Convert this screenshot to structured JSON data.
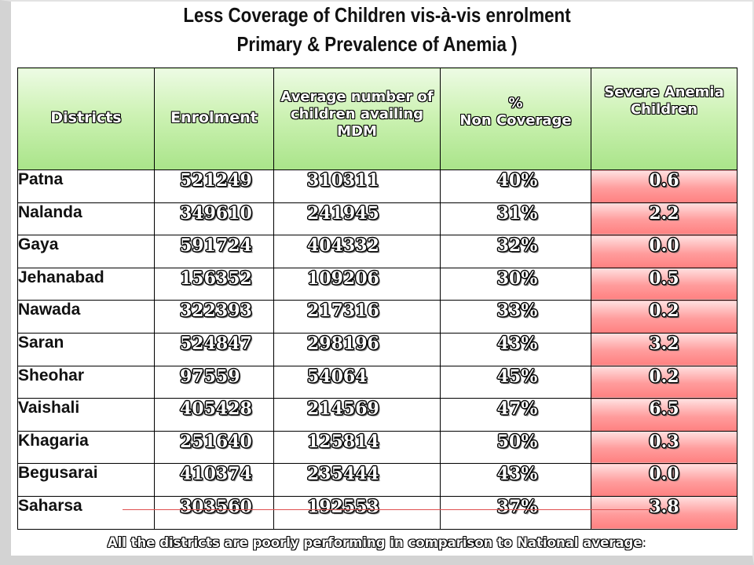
{
  "title_line1": "Less Coverage of Children vis-à-vis enrolment",
  "title_line2": "Primary & Prevalence of Anemia )",
  "table": {
    "headers": {
      "districts": "Districts",
      "enrolment": "Enrolment",
      "avg_mdm": "Average number of children availing MDM",
      "pct_line1": "%",
      "pct_line2": "Non Coverage",
      "severe_anemia": "Severe Anemia Children"
    },
    "rows": [
      {
        "district": "Patna",
        "enrolment": "521249",
        "avg_mdm": "310311",
        "non_coverage": "40%",
        "severe_anemia": "0.6"
      },
      {
        "district": "Nalanda",
        "enrolment": "349610",
        "avg_mdm": "241945",
        "non_coverage": "31%",
        "severe_anemia": "2.2"
      },
      {
        "district": "Gaya",
        "enrolment": "591724",
        "avg_mdm": "404332",
        "non_coverage": "32%",
        "severe_anemia": "0.0"
      },
      {
        "district": "Jehanabad",
        "enrolment": "156352",
        "avg_mdm": "109206",
        "non_coverage": "30%",
        "severe_anemia": "0.5"
      },
      {
        "district": "Nawada",
        "enrolment": "322393",
        "avg_mdm": "217316",
        "non_coverage": "33%",
        "severe_anemia": "0.2"
      },
      {
        "district": "Saran",
        "enrolment": "524847",
        "avg_mdm": "298196",
        "non_coverage": "43%",
        "severe_anemia": "3.2"
      },
      {
        "district": "Sheohar",
        "enrolment": "97559",
        "avg_mdm": "54064",
        "non_coverage": "45%",
        "severe_anemia": "0.2"
      },
      {
        "district": "Vaishali",
        "enrolment": "405428",
        "avg_mdm": "214569",
        "non_coverage": "47%",
        "severe_anemia": "6.5"
      },
      {
        "district": "Khagaria",
        "enrolment": "251640",
        "avg_mdm": "125814",
        "non_coverage": "50%",
        "severe_anemia": "0.3"
      },
      {
        "district": "Begusarai",
        "enrolment": "410374",
        "avg_mdm": "235444",
        "non_coverage": "43%",
        "severe_anemia": "0.0"
      },
      {
        "district": "Saharsa",
        "enrolment": "303560",
        "avg_mdm": "192553",
        "non_coverage": "37%",
        "severe_anemia": "3.8"
      }
    ]
  },
  "footer": {
    "text": "All the districts are poorly performing in comparison to National average",
    "colon": ":"
  },
  "colors": {
    "header_green": "#a9e489",
    "anemia_red": "#ff8080"
  }
}
